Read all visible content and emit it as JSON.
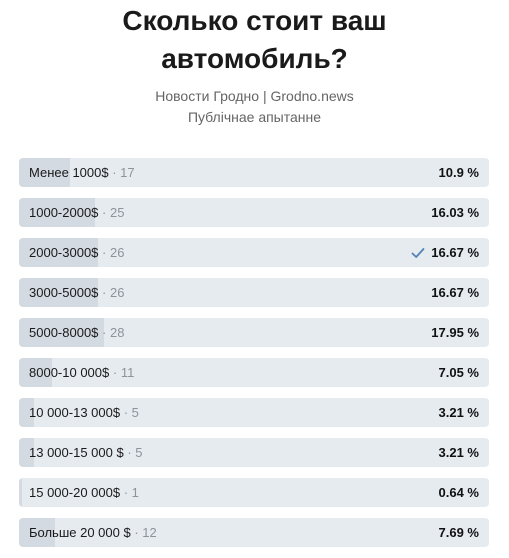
{
  "poll": {
    "title_line1": "Сколько стоит ваш",
    "title_line2": "автомобиль?",
    "source": "Новости Гродно | Grodno.news",
    "type": "Публічнае апытанне",
    "count_separator": " · ",
    "options": [
      {
        "label": "Менее 1000$",
        "count": "17",
        "percent": "10.9 %",
        "share": 10.9,
        "voted": false
      },
      {
        "label": "1000-2000$",
        "count": "25",
        "percent": "16.03 %",
        "share": 16.03,
        "voted": false
      },
      {
        "label": "2000-3000$",
        "count": "26",
        "percent": "16.67 %",
        "share": 16.67,
        "voted": true
      },
      {
        "label": "3000-5000$",
        "count": "26",
        "percent": "16.67 %",
        "share": 16.67,
        "voted": false
      },
      {
        "label": "5000-8000$",
        "count": "28",
        "percent": "17.95 %",
        "share": 17.95,
        "voted": false
      },
      {
        "label": "8000-10 000$",
        "count": "11",
        "percent": "7.05 %",
        "share": 7.05,
        "voted": false
      },
      {
        "label": "10 000-13 000$",
        "count": "5",
        "percent": "3.21 %",
        "share": 3.21,
        "voted": false
      },
      {
        "label": "13 000-15 000 $",
        "count": "5",
        "percent": "3.21 %",
        "share": 3.21,
        "voted": false
      },
      {
        "label": "15 000-20 000$",
        "count": "1",
        "percent": "0.64 %",
        "share": 0.64,
        "voted": false
      },
      {
        "label": "Больше 20 000 $",
        "count": "12",
        "percent": "7.69 %",
        "share": 7.69,
        "voted": false
      }
    ]
  },
  "icons": {
    "voted_check": "check-icon"
  },
  "colors": {
    "bar_track": "#e6ebf0",
    "bar_fill": "#d3dae2",
    "check_accent": "#5181b8",
    "muted_text": "#8b939c"
  }
}
